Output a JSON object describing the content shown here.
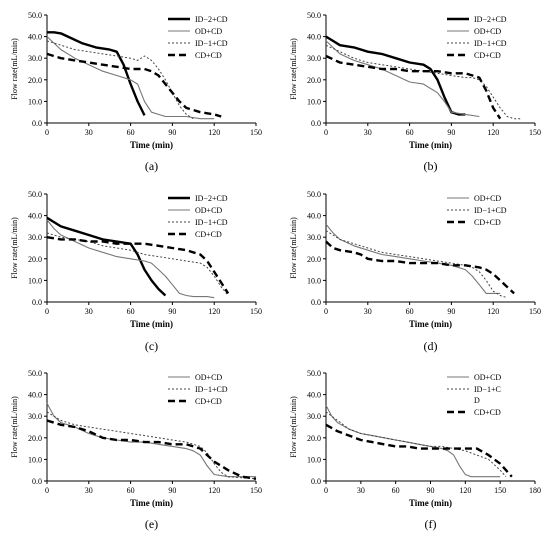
{
  "chart_data": [
    {
      "type": "line",
      "panel_label": "(a)",
      "xlabel": "Time  (min)",
      "ylabel": "Flow rate(mL/min)",
      "xlim": [
        0,
        150
      ],
      "xticks": [
        "0",
        "30",
        "60",
        "90",
        "120",
        "150"
      ],
      "ylim": [
        0,
        50
      ],
      "yticks": [
        "0.0",
        "10.0",
        "20.0",
        "30.0",
        "40.0",
        "50.0"
      ],
      "legend_position": "top-right",
      "series": [
        {
          "name": "ID−2+CD",
          "style": "thick-solid",
          "x": [
            0,
            5,
            10,
            15,
            25,
            35,
            45,
            50,
            55,
            60,
            65,
            70
          ],
          "y": [
            42,
            42,
            41.5,
            40,
            37,
            35,
            34,
            33,
            27,
            18,
            10,
            3.5
          ]
        },
        {
          "name": "OD+CD",
          "style": "thin-solid",
          "x": [
            0,
            5,
            10,
            20,
            30,
            40,
            50,
            60,
            65,
            70,
            75,
            80,
            85,
            90,
            100,
            110,
            120
          ],
          "y": [
            40,
            37,
            34,
            30,
            27,
            24,
            22,
            20,
            18,
            10,
            5,
            4,
            3,
            3,
            3,
            2,
            2
          ]
        },
        {
          "name": "ID−1+CD",
          "style": "dotted",
          "x": [
            0,
            10,
            20,
            30,
            40,
            50,
            60,
            65,
            70,
            75,
            80,
            85,
            90,
            95,
            100,
            105
          ],
          "y": [
            38,
            36,
            34,
            33,
            32,
            31,
            30,
            29,
            31,
            29,
            25,
            20,
            14,
            8,
            4,
            2
          ]
        },
        {
          "name": "CD+CD",
          "style": "thick-dash",
          "x": [
            0,
            10,
            20,
            30,
            40,
            50,
            60,
            70,
            75,
            80,
            85,
            90,
            95,
            100,
            105,
            110,
            115,
            120,
            125
          ],
          "y": [
            32,
            30,
            29,
            28,
            27,
            26,
            25,
            25,
            24,
            22,
            18,
            14,
            10,
            7,
            6,
            5,
            4.5,
            4,
            3
          ]
        }
      ]
    },
    {
      "type": "line",
      "panel_label": "(b)",
      "xlabel": "Time  (min)",
      "ylabel": "Flow rate(mL/min)",
      "xlim": [
        0,
        150
      ],
      "xticks": [
        "0",
        "30",
        "60",
        "90",
        "120",
        "150"
      ],
      "ylim": [
        0,
        50
      ],
      "yticks": [
        "0.0",
        "10.0",
        "20.0",
        "30.0",
        "40.0",
        "50.0"
      ],
      "legend_position": "top-right",
      "series": [
        {
          "name": "ID−2+CD",
          "style": "thick-solid",
          "x": [
            0,
            5,
            10,
            20,
            30,
            40,
            50,
            60,
            70,
            75,
            80,
            85,
            90,
            95,
            100
          ],
          "y": [
            40,
            38,
            36,
            35,
            33,
            32,
            30,
            28,
            27,
            25,
            20,
            12,
            5,
            4,
            4
          ]
        },
        {
          "name": "OD+CD",
          "style": "thin-solid",
          "x": [
            0,
            5,
            10,
            20,
            30,
            40,
            50,
            60,
            70,
            80,
            85,
            90,
            100,
            110
          ],
          "y": [
            38,
            35,
            32,
            29,
            27,
            25,
            22,
            19,
            18,
            14,
            10,
            5,
            4,
            3
          ]
        },
        {
          "name": "ID−1+CD",
          "style": "dotted",
          "x": [
            0,
            10,
            20,
            30,
            40,
            50,
            60,
            70,
            80,
            90,
            100,
            105,
            110,
            115,
            120,
            125,
            130,
            135,
            140
          ],
          "y": [
            36,
            33,
            30,
            28,
            27,
            26,
            25,
            24,
            23,
            22,
            21,
            21,
            20,
            17,
            12,
            7,
            3,
            2,
            2
          ]
        },
        {
          "name": "CD+CD",
          "style": "thick-dash",
          "x": [
            0,
            10,
            20,
            30,
            40,
            50,
            60,
            70,
            80,
            90,
            100,
            110,
            115,
            120,
            125
          ],
          "y": [
            31,
            28,
            27,
            26,
            25,
            25,
            24,
            24,
            24,
            23,
            23,
            21,
            15,
            7,
            2
          ]
        }
      ]
    },
    {
      "type": "line",
      "panel_label": "(c)",
      "xlabel": "Time  (min)",
      "ylabel": "Flow rate(mL/min)",
      "xlim": [
        0,
        150
      ],
      "xticks": [
        "0",
        "30",
        "60",
        "90",
        "120",
        "150"
      ],
      "ylim": [
        0,
        50
      ],
      "yticks": [
        "0.0",
        "10.0",
        "20.0",
        "30.0",
        "40.0",
        "50.0"
      ],
      "legend_position": "top-right",
      "series": [
        {
          "name": "ID−2+CD",
          "style": "thick-solid",
          "x": [
            0,
            5,
            10,
            20,
            30,
            40,
            50,
            60,
            65,
            70,
            75,
            80,
            85
          ],
          "y": [
            39,
            37,
            35,
            33,
            31,
            29,
            28,
            27,
            22,
            15,
            10,
            6,
            3
          ]
        },
        {
          "name": "OD+CD",
          "style": "thin-solid",
          "x": [
            0,
            5,
            10,
            20,
            30,
            40,
            50,
            60,
            70,
            75,
            80,
            85,
            90,
            95,
            100,
            105,
            110,
            115,
            120
          ],
          "y": [
            38,
            34,
            31,
            28,
            25,
            23,
            21,
            20,
            19,
            18,
            15,
            12,
            8,
            4,
            3,
            2.5,
            2.5,
            2.5,
            2
          ]
        },
        {
          "name": "ID−1+CD",
          "style": "dotted",
          "x": [
            0,
            10,
            20,
            30,
            40,
            50,
            60,
            70,
            80,
            90,
            100,
            110,
            115,
            120,
            125,
            130
          ],
          "y": [
            32,
            30,
            29,
            28,
            26,
            25,
            24,
            22,
            21,
            20,
            19,
            18,
            16,
            12,
            7,
            3
          ]
        },
        {
          "name": "CD+CD",
          "style": "thick-dash",
          "x": [
            0,
            10,
            20,
            30,
            40,
            50,
            60,
            70,
            80,
            90,
            100,
            110,
            115,
            120,
            125,
            130
          ],
          "y": [
            30,
            29,
            29,
            28,
            28,
            27,
            27,
            27,
            26,
            25,
            24,
            22,
            19,
            14,
            9,
            4
          ]
        }
      ]
    },
    {
      "type": "line",
      "panel_label": "(d)",
      "xlabel": "Time  (min)",
      "ylabel": "Flow rate(mL/min)",
      "xlim": [
        0,
        150
      ],
      "xticks": [
        "0",
        "30",
        "60",
        "90",
        "120",
        "150"
      ],
      "ylim": [
        0,
        50
      ],
      "yticks": [
        "0.0",
        "10.0",
        "20.0",
        "30.0",
        "40.0",
        "50.0"
      ],
      "legend_position": "top-right",
      "series": [
        {
          "name": "OD+CD",
          "style": "thin-solid",
          "x": [
            0,
            5,
            10,
            20,
            30,
            40,
            50,
            60,
            70,
            80,
            90,
            100,
            105,
            110,
            115,
            120,
            125
          ],
          "y": [
            36,
            32,
            29,
            26,
            24,
            22,
            21,
            20,
            19,
            18,
            17,
            15,
            12,
            8,
            4,
            4,
            4
          ]
        },
        {
          "name": "ID−1+CD",
          "style": "dotted",
          "x": [
            0,
            5,
            10,
            20,
            30,
            40,
            50,
            60,
            70,
            80,
            90,
            100,
            105,
            110,
            115,
            120,
            125,
            130
          ],
          "y": [
            33,
            31,
            29,
            27,
            25,
            23,
            22,
            21,
            20,
            19,
            18,
            17,
            16,
            14,
            10,
            5,
            3,
            2
          ]
        },
        {
          "name": "CD+CD",
          "style": "thick-dash",
          "x": [
            0,
            5,
            10,
            20,
            25,
            30,
            40,
            50,
            60,
            70,
            80,
            90,
            100,
            110,
            115,
            120,
            125,
            130,
            135
          ],
          "y": [
            28,
            25,
            24,
            23,
            22,
            20,
            19,
            19,
            18,
            18,
            18,
            17,
            17,
            16,
            15,
            13,
            10,
            7,
            4
          ]
        }
      ]
    },
    {
      "type": "line",
      "panel_label": "(e)",
      "xlabel": "Time  (min)",
      "ylabel": "Flow rate(mL/min)",
      "xlim": [
        0,
        150
      ],
      "xticks": [
        "0",
        "30",
        "60",
        "90",
        "120",
        "150"
      ],
      "ylim": [
        0,
        50
      ],
      "yticks": [
        "0.0",
        "10.0",
        "20.0",
        "30.0",
        "40.0",
        "50.0"
      ],
      "legend_position": "top-right",
      "series": [
        {
          "name": "OD+CD",
          "style": "thin-solid",
          "x": [
            0,
            5,
            10,
            20,
            30,
            40,
            50,
            60,
            70,
            80,
            90,
            100,
            105,
            110,
            115,
            120,
            130,
            140,
            150
          ],
          "y": [
            36,
            30,
            27,
            25,
            22,
            20,
            19,
            18,
            18,
            17,
            16,
            15,
            14,
            12,
            7,
            3,
            2,
            2,
            2
          ]
        },
        {
          "name": "ID−1+CD",
          "style": "dotted",
          "x": [
            0,
            10,
            20,
            30,
            40,
            50,
            60,
            70,
            80,
            90,
            100,
            105,
            110,
            115,
            120,
            125,
            130,
            140,
            150
          ],
          "y": [
            32,
            28,
            26,
            25,
            24,
            23,
            22,
            21,
            20,
            19,
            18,
            17,
            16,
            13,
            8,
            4,
            2,
            1.5,
            1
          ]
        },
        {
          "name": "CD+CD",
          "style": "thick-dash",
          "x": [
            0,
            10,
            20,
            30,
            40,
            50,
            60,
            70,
            80,
            90,
            100,
            105,
            110,
            115,
            120,
            125,
            130,
            140,
            150
          ],
          "y": [
            28,
            26,
            25,
            23,
            20,
            19,
            19,
            18,
            18,
            17,
            17,
            16,
            15,
            12,
            9,
            7,
            5,
            2,
            1
          ]
        }
      ]
    },
    {
      "type": "line",
      "panel_label": "(f)",
      "xlabel": "Time  (min)",
      "ylabel": "Flow rate(mL/min)",
      "xlim": [
        0,
        180
      ],
      "xticks": [
        "0",
        "30",
        "60",
        "90",
        "120",
        "150",
        "180"
      ],
      "ylim": [
        0,
        50
      ],
      "yticks": [
        "0.0",
        "10.0",
        "20.0",
        "30.0",
        "40.0",
        "50.0"
      ],
      "legend_position": "top-right",
      "series": [
        {
          "name": "OD+CD",
          "style": "thin-solid",
          "x": [
            0,
            5,
            10,
            20,
            30,
            40,
            50,
            60,
            70,
            80,
            90,
            100,
            105,
            110,
            115,
            120,
            125,
            130,
            140,
            150
          ],
          "y": [
            35,
            30,
            27,
            24,
            22,
            21,
            20,
            19,
            18,
            17,
            16,
            15,
            14,
            12,
            7,
            3,
            2,
            2,
            2,
            2
          ]
        },
        {
          "name": "ID−1+C\nD",
          "style": "dotted",
          "x": [
            0,
            10,
            20,
            30,
            40,
            50,
            60,
            70,
            80,
            90,
            100,
            110,
            120,
            130,
            140,
            150,
            155
          ],
          "y": [
            32,
            28,
            24,
            22,
            21,
            20,
            19,
            18,
            17,
            16,
            16,
            15,
            14,
            12,
            10,
            5,
            2
          ]
        },
        {
          "name": "CD+CD",
          "style": "thick-dash",
          "x": [
            0,
            10,
            20,
            30,
            40,
            50,
            60,
            70,
            80,
            90,
            100,
            110,
            120,
            130,
            140,
            150,
            155,
            160
          ],
          "y": [
            26,
            23,
            21,
            19,
            18,
            17,
            16,
            16,
            15,
            15,
            15,
            15,
            15,
            15,
            12,
            8,
            5,
            2
          ]
        }
      ]
    }
  ]
}
